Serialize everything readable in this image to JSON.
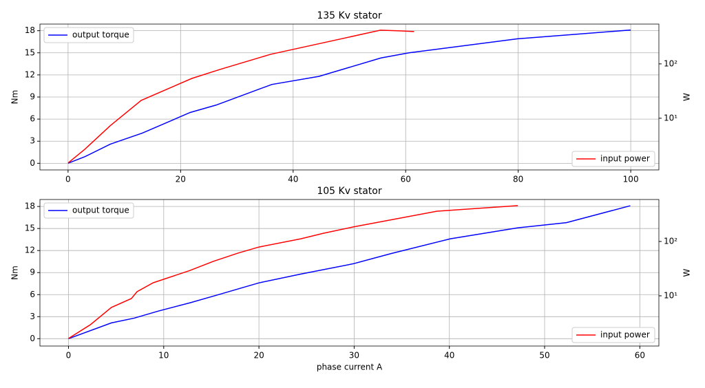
{
  "chart_data": [
    {
      "type": "line",
      "title": "135 Kv stator",
      "ylabel": "Nm",
      "y2label": "W",
      "xlim": [
        -5,
        105
      ],
      "xticks": [
        0,
        20,
        40,
        60,
        80,
        100
      ],
      "ylim": [
        -0.9,
        18.9
      ],
      "yticks": [
        0,
        3,
        6,
        9,
        12,
        15,
        18
      ],
      "y2lim": [
        1.12,
        540
      ],
      "y2log": true,
      "y2ticks": [
        {
          "value": 10,
          "label": "10¹"
        },
        {
          "value": 100,
          "label": "10²"
        }
      ],
      "grid": true,
      "legend": "upper left",
      "legend2": "lower right",
      "series": [
        {
          "name": "output torque",
          "color": "#0000ff",
          "x": [
            0,
            3,
            7.5,
            13.2,
            21.7,
            26.3,
            36.2,
            44.6,
            55.6,
            60.6,
            79.9,
            100
          ],
          "values": [
            0,
            0.9,
            2.6,
            4.1,
            6.9,
            7.9,
            10.7,
            11.8,
            14.3,
            15.0,
            16.9,
            18.1
          ]
        },
        {
          "name": "input power",
          "color": "#ff0000",
          "axis": "y2",
          "x": [
            0,
            3,
            7.5,
            13,
            22,
            27,
            36,
            45,
            55.5,
            59,
            61.5
          ],
          "values": [
            1.5,
            2.7,
            7.3,
            21.3,
            54,
            79,
            150,
            240,
            417,
            405,
            394
          ]
        }
      ]
    },
    {
      "type": "line",
      "title": "105 Kv stator",
      "xlabel": "phase current A",
      "ylabel": "Nm",
      "y2label": "W",
      "xlim": [
        -3,
        62
      ],
      "xticks": [
        0,
        10,
        20,
        30,
        40,
        50,
        60
      ],
      "ylim": [
        -1,
        18.95
      ],
      "yticks": [
        0,
        3,
        6,
        9,
        12,
        15,
        18
      ],
      "y2lim": [
        1.19,
        592
      ],
      "y2log": true,
      "y2ticks": [
        {
          "value": 10,
          "label": "10¹"
        },
        {
          "value": 100,
          "label": "10²"
        }
      ],
      "grid": true,
      "legend": "upper left",
      "legend2": "lower right",
      "series": [
        {
          "name": "output torque",
          "color": "#0000ff",
          "x": [
            0,
            4.5,
            6.9,
            9.4,
            12.8,
            15.5,
            20,
            24.4,
            29.9,
            33.9,
            40.1,
            47.2,
            52.3,
            59
          ],
          "values": [
            0,
            2.15,
            2.8,
            3.75,
            4.9,
            5.9,
            7.6,
            8.8,
            10.2,
            11.6,
            13.6,
            15.1,
            15.8,
            18.1
          ]
        },
        {
          "name": "input power",
          "color": "#ff0000",
          "axis": "y2",
          "x": [
            0,
            2.3,
            4.5,
            6.6,
            7.2,
            8.9,
            12.7,
            15.2,
            17.8,
            20,
            24.4,
            26.8,
            29.9,
            38.7,
            47.2
          ],
          "values": [
            1.64,
            2.94,
            6.1,
            8.9,
            11.9,
            17.4,
            29,
            43,
            61,
            79,
            112,
            142,
            185,
            361,
            457
          ]
        }
      ]
    }
  ]
}
